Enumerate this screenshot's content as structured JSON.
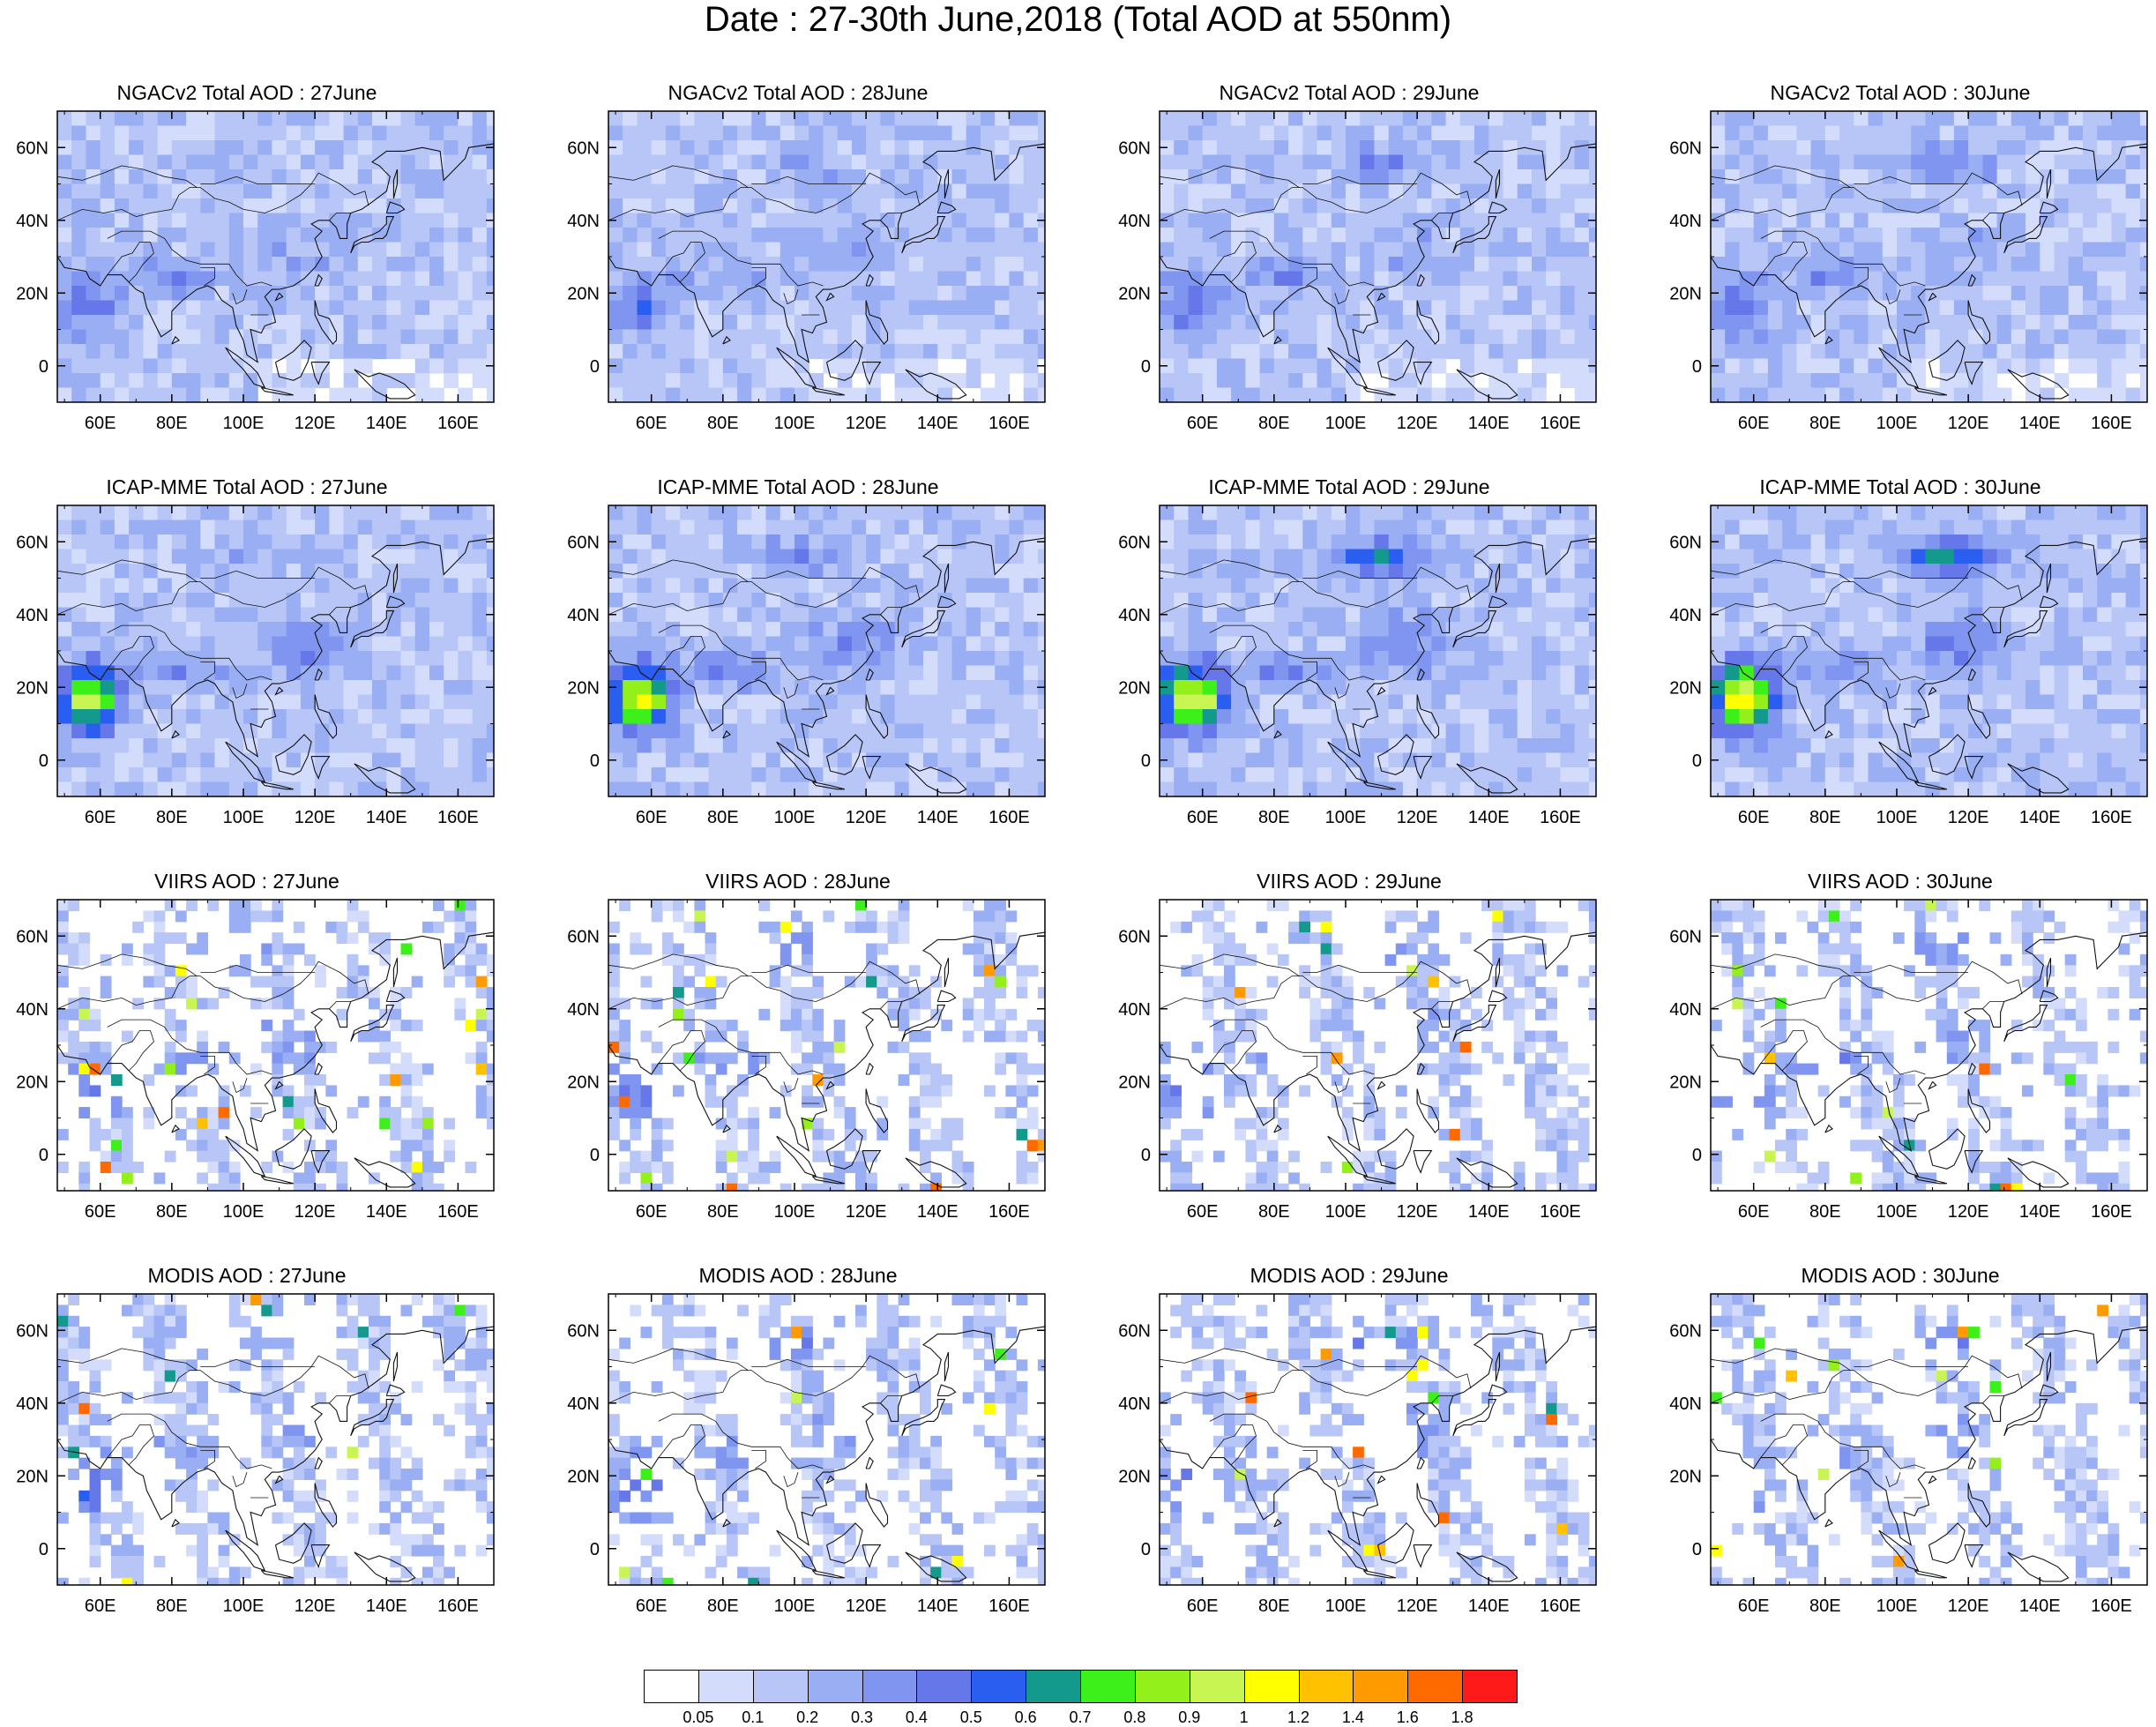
{
  "title": "Date : 27-30th June,2018 (Total AOD at 550nm)",
  "map": {
    "lon_ticks": [
      "60E",
      "80E",
      "100E",
      "120E",
      "140E",
      "160E"
    ],
    "lat_ticks": [
      "60N",
      "40N",
      "20N",
      "0"
    ],
    "lon_values": [
      60,
      80,
      100,
      120,
      140,
      160
    ],
    "lat_values": [
      60,
      40,
      20,
      0
    ],
    "extent": {
      "lon": [
        48,
        170
      ],
      "lat": [
        -10,
        70
      ]
    }
  },
  "rows": [
    {
      "name": "NGACv2",
      "panels": [
        {
          "title": "NGACv2 Total AOD : 27June"
        },
        {
          "title": "NGACv2 Total AOD : 28June"
        },
        {
          "title": "NGACv2 Total AOD : 29June"
        },
        {
          "title": "NGACv2 Total AOD : 30June"
        }
      ]
    },
    {
      "name": "ICAP-MME",
      "panels": [
        {
          "title": "ICAP-MME Total AOD : 27June"
        },
        {
          "title": "ICAP-MME Total AOD : 28June"
        },
        {
          "title": "ICAP-MME Total AOD : 29June"
        },
        {
          "title": "ICAP-MME Total AOD : 30June"
        }
      ]
    },
    {
      "name": "VIIRS",
      "panels": [
        {
          "title": "VIIRS AOD : 27June"
        },
        {
          "title": "VIIRS AOD : 28June"
        },
        {
          "title": "VIIRS AOD : 29June"
        },
        {
          "title": "VIIRS AOD : 30June"
        }
      ]
    },
    {
      "name": "MODIS",
      "panels": [
        {
          "title": "MODIS AOD : 27June"
        },
        {
          "title": "MODIS AOD : 28June"
        },
        {
          "title": "MODIS AOD : 29June"
        },
        {
          "title": "MODIS AOD : 30June"
        }
      ]
    }
  ],
  "colorbar": {
    "labels": [
      "0.05",
      "0.1",
      "0.2",
      "0.3",
      "0.4",
      "0.5",
      "0.6",
      "0.7",
      "0.8",
      "0.9",
      "1",
      "1.2",
      "1.4",
      "1.6",
      "1.8"
    ],
    "colors": [
      "#ffffff",
      "#d4dcfb",
      "#b7c5f7",
      "#9aaef4",
      "#7f95f0",
      "#6677ea",
      "#2a5ef0",
      "#139a8c",
      "#3ef01a",
      "#94f01a",
      "#c8f552",
      "#ffff00",
      "#ffc100",
      "#ff9a00",
      "#ff6a00",
      "#ff1a1a"
    ]
  }
}
